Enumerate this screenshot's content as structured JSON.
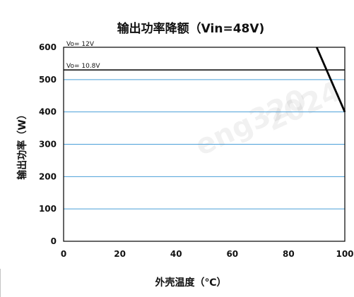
{
  "chart_data": {
    "type": "line",
    "title": "输出功率降额（Vin=48V)",
    "xlabel": "外壳温度（℃）",
    "ylabel": "输出功率（W）",
    "xlim": [
      0,
      100
    ],
    "ylim": [
      0,
      600
    ],
    "x_ticks": [
      "0",
      "20",
      "40",
      "60",
      "80",
      "100"
    ],
    "y_ticks": [
      "0",
      "100",
      "200",
      "300",
      "400",
      "500",
      "600"
    ],
    "grid": true,
    "colors": {
      "grid": "#4a9fd8",
      "line": "#000000",
      "frame": "#000000"
    },
    "series": [
      {
        "name": "Vo= 10.8V",
        "x": [
          0,
          100
        ],
        "y": [
          530,
          530
        ]
      },
      {
        "name": "Vo= 12V",
        "x": [
          90,
          100
        ],
        "y": [
          600,
          400
        ]
      }
    ],
    "annotations": [
      "Vo= 12V",
      "Vo= 10.8V"
    ]
  }
}
